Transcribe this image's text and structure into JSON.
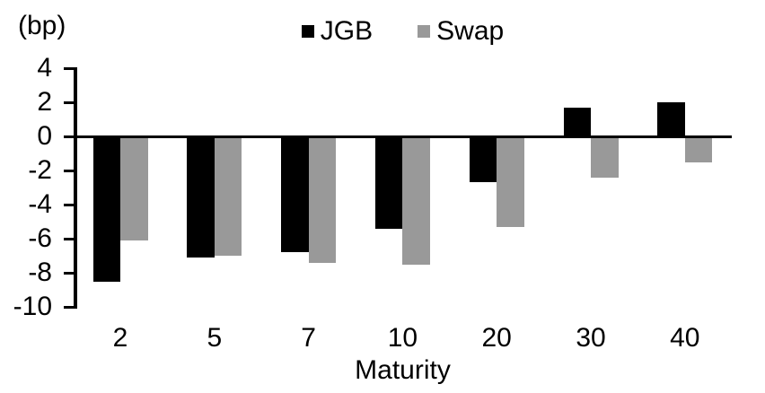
{
  "chart_data": {
    "type": "bar",
    "title": "(bp)",
    "xlabel": "Maturity",
    "ylabel": "",
    "categories": [
      "2",
      "5",
      "7",
      "10",
      "20",
      "30",
      "40"
    ],
    "series": [
      {
        "name": "JGB",
        "color": "#000000",
        "values": [
          -8.5,
          -7.1,
          -6.8,
          -5.4,
          -2.7,
          1.7,
          2.0
        ]
      },
      {
        "name": "Swap",
        "color": "#999999",
        "values": [
          -6.1,
          -7.0,
          -7.4,
          -7.5,
          -5.3,
          -2.4,
          -1.5
        ]
      }
    ],
    "y_ticks": [
      4,
      2,
      0,
      -2,
      -4,
      -6,
      -8,
      -10
    ],
    "ylim": [
      -10,
      4
    ],
    "grid": false,
    "legend_position": "top-center",
    "bar_colors": {
      "JGB": "#000000",
      "Swap": "#999999"
    },
    "background": "#ffffff"
  }
}
